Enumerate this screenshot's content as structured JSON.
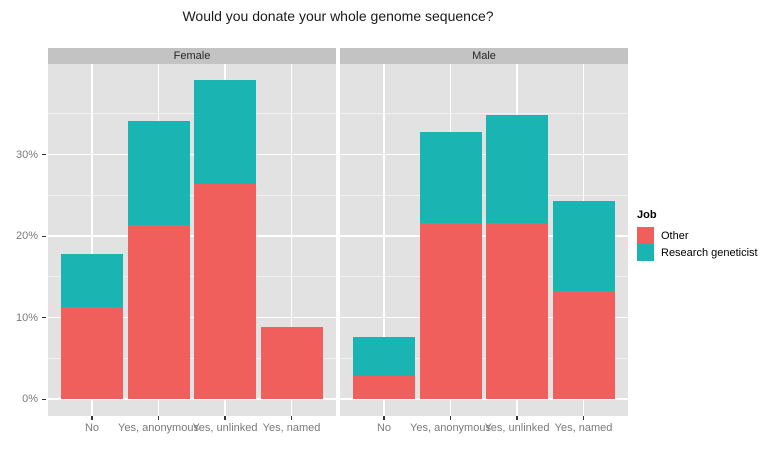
{
  "title": "Would you donate your whole genome sequence?",
  "legend": {
    "title": "Job",
    "items": [
      {
        "label": "Other",
        "color": "#F15F5C"
      },
      {
        "label": "Research geneticist",
        "color": "#1AB5B2"
      }
    ]
  },
  "axes": {
    "y_tick_labels": [
      "0%",
      "10%",
      "20%",
      "30%"
    ],
    "y_tick_values": [
      0,
      10,
      20,
      30
    ],
    "y_minor_values": [
      5,
      15,
      25,
      35
    ]
  },
  "colors": {
    "other": "#F15F5C",
    "research_geneticist": "#1AB5B2",
    "panel_background": "#E2E2E2",
    "strip_background": "#C3C3C3",
    "gridline": "#FFFFFF",
    "axis_text": "#7A7A7A"
  },
  "chart_data": {
    "type": "bar",
    "stacked": true,
    "title": "Would you donate your whole genome sequence?",
    "xlabel": "",
    "ylabel": "",
    "grid": true,
    "legend_position": "right",
    "y_axis": {
      "tick_labels": [
        "0%",
        "10%",
        "20%",
        "30%"
      ],
      "range_pct": [
        -2,
        41.2
      ]
    },
    "categories": [
      "No",
      "Yes, anonymous",
      "Yes, unlinked",
      "Yes, named"
    ],
    "facets": [
      {
        "label": "Female",
        "series": [
          {
            "name": "Other",
            "color": "#F15F5C",
            "values": [
              11.3,
              21.4,
              26.4,
              8.8
            ]
          },
          {
            "name": "Research geneticist",
            "color": "#1AB5B2",
            "values": [
              6.5,
              12.7,
              12.7,
              0
            ]
          }
        ],
        "totals": [
          17.8,
          34.1,
          39.1,
          8.8
        ]
      },
      {
        "label": "Male",
        "series": [
          {
            "name": "Other",
            "color": "#F15F5C",
            "values": [
              2.8,
              21.6,
              21.6,
              13.3
            ]
          },
          {
            "name": "Research geneticist",
            "color": "#1AB5B2",
            "values": [
              4.8,
              11.2,
              13.2,
              11.0
            ]
          }
        ],
        "totals": [
          7.6,
          32.8,
          34.8,
          24.3
        ]
      }
    ]
  }
}
